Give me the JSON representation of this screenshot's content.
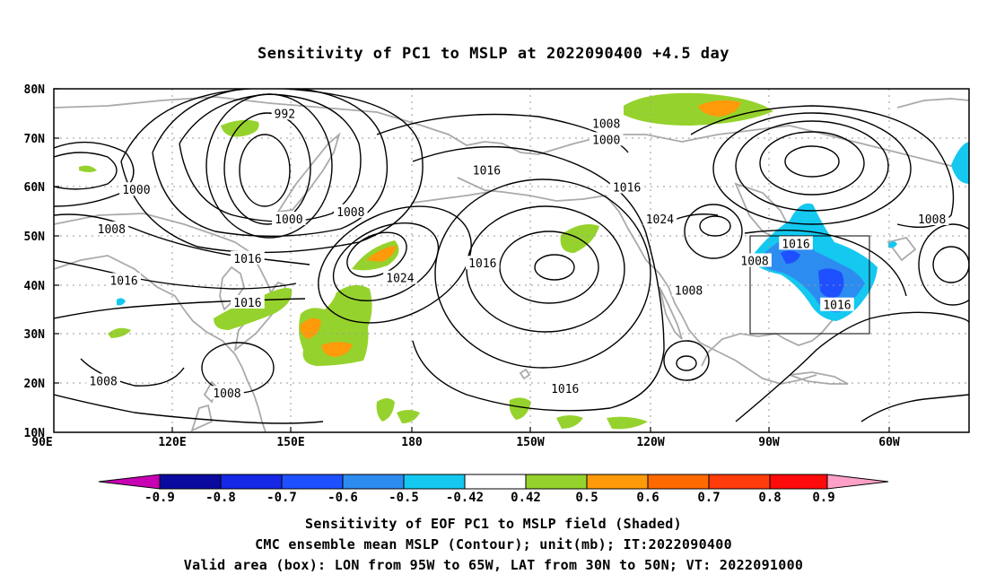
{
  "title": "Sensitivity of PC1 to MSLP at 2022090400 +4.5 day",
  "map": {
    "lat_labels": [
      "80N",
      "70N",
      "60N",
      "50N",
      "40N",
      "30N",
      "20N",
      "10N"
    ],
    "lon_labels": [
      "90E",
      "120E",
      "150E",
      "180",
      "150W",
      "120W",
      "90W",
      "60W"
    ],
    "lon_range": [
      90,
      312
    ],
    "lat_range": [
      10,
      80
    ],
    "land_color": "#aaaaaa",
    "contour_color": "#000000",
    "grid_style": "dotted",
    "valid_box": {
      "lon": [
        265,
        295
      ],
      "lat": [
        30,
        50
      ]
    },
    "contour_labels": [
      {
        "text": "992",
        "lon": 146,
        "lat": 75
      },
      {
        "text": "1008",
        "lon": 224,
        "lat": 73
      },
      {
        "text": "1000",
        "lon": 224,
        "lat": 69.7
      },
      {
        "text": "1000",
        "lon": 110,
        "lat": 59.5
      },
      {
        "text": "1016",
        "lon": 195,
        "lat": 63.5
      },
      {
        "text": "1016",
        "lon": 229,
        "lat": 60
      },
      {
        "text": "1008",
        "lon": 162,
        "lat": 55
      },
      {
        "text": "1000",
        "lon": 147,
        "lat": 53.5
      },
      {
        "text": "1024",
        "lon": 237,
        "lat": 53.5
      },
      {
        "text": "1008",
        "lon": 104,
        "lat": 51.5
      },
      {
        "text": "1016",
        "lon": 270,
        "lat": 48.5
      },
      {
        "text": "1008",
        "lon": 303,
        "lat": 53.5
      },
      {
        "text": "1016",
        "lon": 137,
        "lat": 45.5
      },
      {
        "text": "1016",
        "lon": 194,
        "lat": 44.5
      },
      {
        "text": "1008",
        "lon": 260,
        "lat": 45
      },
      {
        "text": "1016",
        "lon": 107,
        "lat": 41
      },
      {
        "text": "1024",
        "lon": 174,
        "lat": 41.5
      },
      {
        "text": "1008",
        "lon": 244,
        "lat": 39
      },
      {
        "text": "1016",
        "lon": 137,
        "lat": 36.5
      },
      {
        "text": "1016",
        "lon": 280,
        "lat": 36
      },
      {
        "text": "1008",
        "lon": 102,
        "lat": 20.5
      },
      {
        "text": "1008",
        "lon": 132,
        "lat": 18
      },
      {
        "text": "1016",
        "lon": 214,
        "lat": 19
      }
    ]
  },
  "colorbar": {
    "ticks": [
      "-0.9",
      "-0.8",
      "-0.7",
      "-0.6",
      "-0.5",
      "-0.42",
      "0.42",
      "0.5",
      "0.6",
      "0.7",
      "0.8",
      "0.9"
    ],
    "colors": [
      "#c800b4",
      "#0a0aa0",
      "#1428e6",
      "#1e50ff",
      "#2d8cf0",
      "#14c8f0",
      "#ffffff",
      "#96d22d",
      "#ff9a0a",
      "#ff6a00",
      "#ff3c0a",
      "#ff0a0a",
      "#ffa0c8"
    ]
  },
  "captions": {
    "line1": "Sensitivity of EOF PC1 to MSLP field (Shaded)",
    "line2": "CMC ensemble mean MSLP (Contour); unit(mb); IT:2022090400",
    "line3": "Valid area (box): LON from 95W to 65W, LAT from 30N to 50N; VT: 2022091000"
  }
}
